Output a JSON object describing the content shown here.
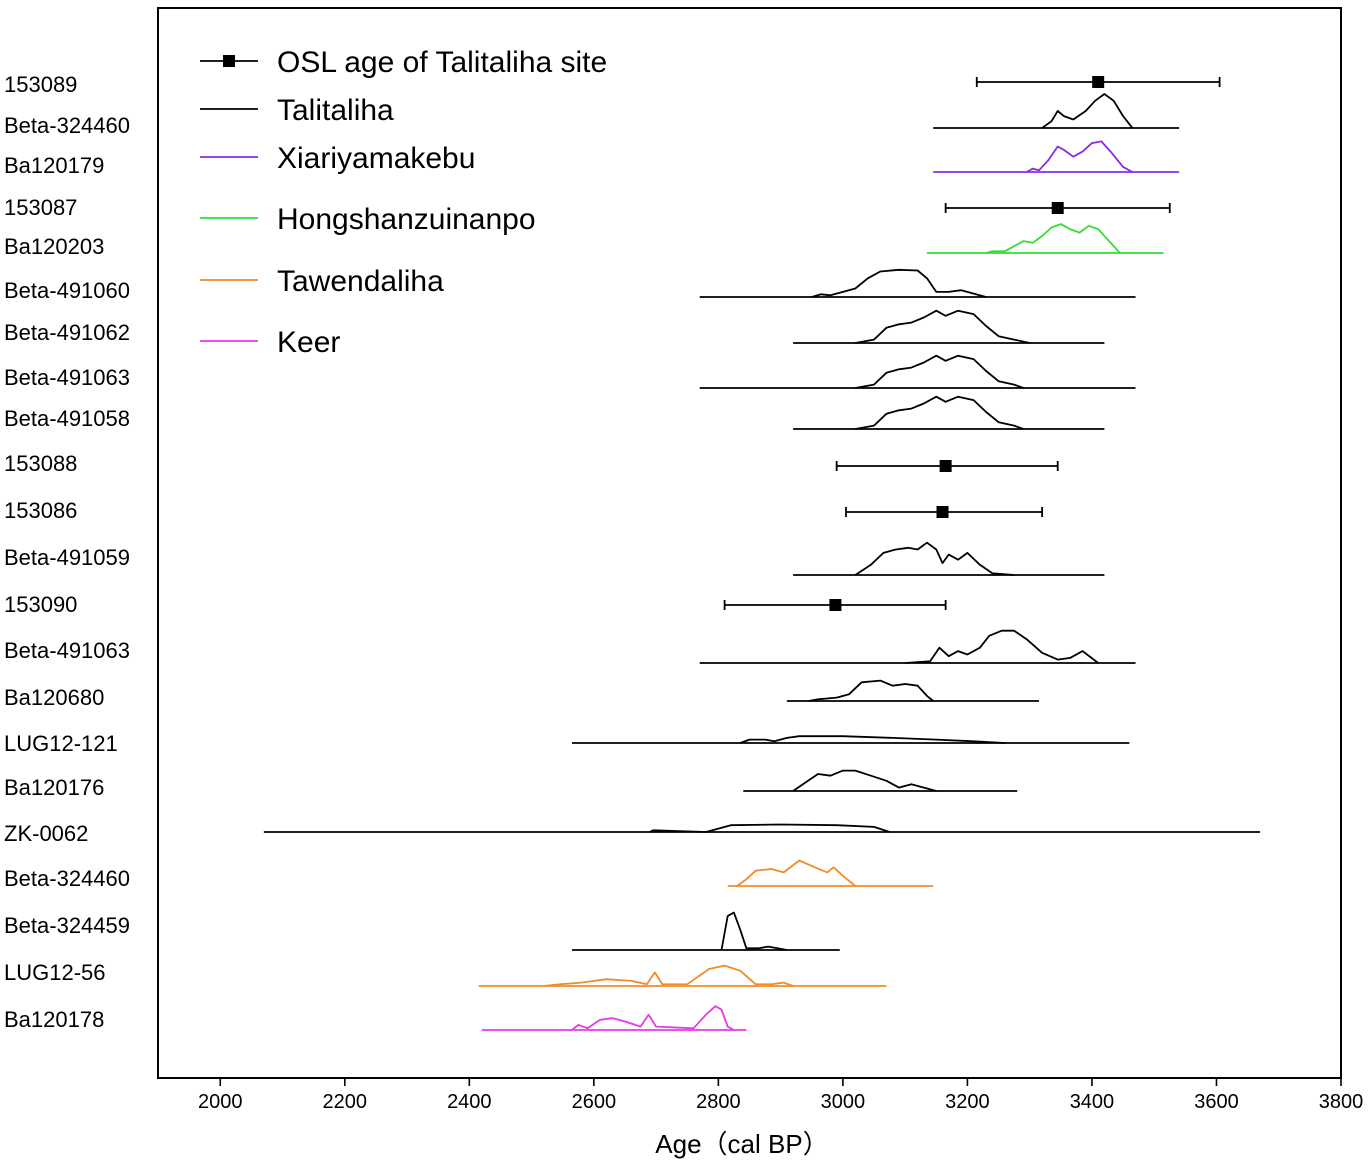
{
  "chart_data": {
    "type": "scatter",
    "title": "",
    "xlabel": "Age（cal BP）",
    "ylabel": "",
    "xlim": [
      1900,
      3800
    ],
    "xticks": [
      2000,
      2200,
      2400,
      2600,
      2800,
      3000,
      3200,
      3400,
      3600,
      3800
    ],
    "grid": false,
    "legend_position": "top-left",
    "legend": [
      {
        "label": "OSL age of Talitaliha site",
        "color": "#000000",
        "marker": "square"
      },
      {
        "label": "Talitaliha",
        "color": "#000000"
      },
      {
        "label": "Xiariyamakebu",
        "color": "#8a2be2"
      },
      {
        "label": "Hongshanzuinanpo",
        "color": "#33dd33"
      },
      {
        "label": "Tawendaliha",
        "color": "#f28c28"
      },
      {
        "label": "Keer",
        "color": "#e838e8"
      }
    ],
    "rows": [
      {
        "label": "153089",
        "kind": "osl",
        "age": 3410,
        "low": 3215,
        "high": 3605,
        "color": "#000000"
      },
      {
        "label": "Beta-324460",
        "kind": "cal",
        "color": "#000000",
        "range": [
          3145,
          3540
        ],
        "dist": [
          [
            3320,
            0
          ],
          [
            3335,
            0.2
          ],
          [
            3345,
            0.5
          ],
          [
            3355,
            0.35
          ],
          [
            3370,
            0.25
          ],
          [
            3390,
            0.5
          ],
          [
            3405,
            0.8
          ],
          [
            3420,
            1.0
          ],
          [
            3435,
            0.8
          ],
          [
            3450,
            0.35
          ],
          [
            3465,
            0
          ]
        ]
      },
      {
        "label": "Ba120179",
        "kind": "cal",
        "color": "#8a2be2",
        "range": [
          3145,
          3540
        ],
        "dist": [
          [
            3295,
            0
          ],
          [
            3305,
            0.1
          ],
          [
            3315,
            0.05
          ],
          [
            3330,
            0.35
          ],
          [
            3345,
            0.75
          ],
          [
            3355,
            0.65
          ],
          [
            3370,
            0.45
          ],
          [
            3385,
            0.6
          ],
          [
            3400,
            0.85
          ],
          [
            3415,
            0.9
          ],
          [
            3430,
            0.6
          ],
          [
            3450,
            0.15
          ],
          [
            3465,
            0
          ]
        ]
      },
      {
        "label": "153087",
        "kind": "osl",
        "age": 3345,
        "low": 3165,
        "high": 3525,
        "color": "#000000"
      },
      {
        "label": "Ba120203",
        "kind": "cal",
        "color": "#33dd33",
        "range": [
          3135,
          3515
        ],
        "dist": [
          [
            3230,
            0
          ],
          [
            3240,
            0.05
          ],
          [
            3260,
            0.05
          ],
          [
            3275,
            0.2
          ],
          [
            3290,
            0.35
          ],
          [
            3305,
            0.3
          ],
          [
            3320,
            0.5
          ],
          [
            3335,
            0.75
          ],
          [
            3350,
            0.85
          ],
          [
            3365,
            0.7
          ],
          [
            3380,
            0.6
          ],
          [
            3395,
            0.8
          ],
          [
            3410,
            0.7
          ],
          [
            3430,
            0.3
          ],
          [
            3445,
            0
          ]
        ]
      },
      {
        "label": "Beta-491060",
        "kind": "cal",
        "color": "#000000",
        "range": [
          2770,
          3470
        ],
        "dist": [
          [
            2950,
            0
          ],
          [
            2965,
            0.08
          ],
          [
            2980,
            0.05
          ],
          [
            3000,
            0.15
          ],
          [
            3020,
            0.25
          ],
          [
            3040,
            0.55
          ],
          [
            3060,
            0.75
          ],
          [
            3090,
            0.8
          ],
          [
            3120,
            0.78
          ],
          [
            3135,
            0.55
          ],
          [
            3150,
            0.15
          ],
          [
            3170,
            0.15
          ],
          [
            3190,
            0.2
          ],
          [
            3210,
            0.1
          ],
          [
            3230,
            0
          ]
        ]
      },
      {
        "label": "Beta-491062",
        "kind": "cal",
        "color": "#000000",
        "range": [
          2920,
          3420
        ],
        "dist": [
          [
            3020,
            0
          ],
          [
            3050,
            0.1
          ],
          [
            3070,
            0.45
          ],
          [
            3090,
            0.55
          ],
          [
            3110,
            0.6
          ],
          [
            3130,
            0.75
          ],
          [
            3150,
            0.95
          ],
          [
            3165,
            0.8
          ],
          [
            3185,
            0.95
          ],
          [
            3210,
            0.85
          ],
          [
            3230,
            0.5
          ],
          [
            3250,
            0.2
          ],
          [
            3275,
            0.1
          ],
          [
            3300,
            0
          ]
        ]
      },
      {
        "label": "Beta-491063",
        "kind": "cal",
        "color": "#000000",
        "range": [
          2770,
          3470
        ],
        "dist": [
          [
            3020,
            0
          ],
          [
            3050,
            0.1
          ],
          [
            3070,
            0.45
          ],
          [
            3090,
            0.55
          ],
          [
            3110,
            0.6
          ],
          [
            3130,
            0.75
          ],
          [
            3150,
            0.95
          ],
          [
            3165,
            0.8
          ],
          [
            3185,
            0.95
          ],
          [
            3210,
            0.85
          ],
          [
            3230,
            0.5
          ],
          [
            3250,
            0.2
          ],
          [
            3275,
            0.1
          ],
          [
            3290,
            0
          ]
        ]
      },
      {
        "label": "Beta-491058",
        "kind": "cal",
        "color": "#000000",
        "range": [
          2920,
          3420
        ],
        "dist": [
          [
            3020,
            0
          ],
          [
            3050,
            0.1
          ],
          [
            3070,
            0.45
          ],
          [
            3090,
            0.55
          ],
          [
            3110,
            0.6
          ],
          [
            3130,
            0.75
          ],
          [
            3150,
            0.95
          ],
          [
            3165,
            0.8
          ],
          [
            3185,
            0.95
          ],
          [
            3210,
            0.85
          ],
          [
            3230,
            0.5
          ],
          [
            3250,
            0.2
          ],
          [
            3275,
            0.1
          ],
          [
            3290,
            0
          ]
        ]
      },
      {
        "label": "153088",
        "kind": "osl",
        "age": 3165,
        "low": 2990,
        "high": 3345,
        "color": "#000000"
      },
      {
        "label": "153086",
        "kind": "osl",
        "age": 3160,
        "low": 3005,
        "high": 3320,
        "color": "#000000"
      },
      {
        "label": "Beta-491059",
        "kind": "cal",
        "color": "#000000",
        "range": [
          2920,
          3420
        ],
        "dist": [
          [
            3020,
            0
          ],
          [
            3045,
            0.3
          ],
          [
            3065,
            0.65
          ],
          [
            3085,
            0.75
          ],
          [
            3105,
            0.8
          ],
          [
            3120,
            0.75
          ],
          [
            3135,
            0.95
          ],
          [
            3150,
            0.75
          ],
          [
            3160,
            0.35
          ],
          [
            3170,
            0.6
          ],
          [
            3185,
            0.45
          ],
          [
            3200,
            0.65
          ],
          [
            3220,
            0.3
          ],
          [
            3240,
            0.05
          ],
          [
            3275,
            0
          ]
        ]
      },
      {
        "label": "153090",
        "kind": "osl",
        "age": 2988,
        "low": 2810,
        "high": 3165,
        "color": "#000000"
      },
      {
        "label": "Beta-491063",
        "kind": "cal",
        "color": "#000000",
        "range": [
          2770,
          3470
        ],
        "dist": [
          [
            3100,
            0
          ],
          [
            3140,
            0.05
          ],
          [
            3155,
            0.45
          ],
          [
            3170,
            0.2
          ],
          [
            3185,
            0.35
          ],
          [
            3200,
            0.25
          ],
          [
            3220,
            0.45
          ],
          [
            3235,
            0.8
          ],
          [
            3255,
            0.95
          ],
          [
            3275,
            0.95
          ],
          [
            3295,
            0.7
          ],
          [
            3320,
            0.3
          ],
          [
            3345,
            0.1
          ],
          [
            3365,
            0.15
          ],
          [
            3385,
            0.35
          ],
          [
            3410,
            0
          ]
        ]
      },
      {
        "label": "Ba120680",
        "kind": "cal",
        "color": "#000000",
        "range": [
          2910,
          3315
        ],
        "dist": [
          [
            2945,
            0
          ],
          [
            2960,
            0.05
          ],
          [
            2990,
            0.1
          ],
          [
            3010,
            0.2
          ],
          [
            3030,
            0.55
          ],
          [
            3060,
            0.6
          ],
          [
            3080,
            0.45
          ],
          [
            3100,
            0.5
          ],
          [
            3120,
            0.45
          ],
          [
            3135,
            0.15
          ],
          [
            3145,
            0
          ]
        ]
      },
      {
        "label": "LUG12-121",
        "kind": "cal",
        "color": "#000000",
        "range": [
          2565,
          3460
        ],
        "dist": [
          [
            2835,
            0
          ],
          [
            2850,
            0.1
          ],
          [
            2875,
            0.1
          ],
          [
            2890,
            0.05
          ],
          [
            2910,
            0.15
          ],
          [
            2930,
            0.2
          ],
          [
            3000,
            0.2
          ],
          [
            3080,
            0.15
          ],
          [
            3150,
            0.1
          ],
          [
            3210,
            0.05
          ],
          [
            3260,
            0
          ]
        ]
      },
      {
        "label": "Ba120176",
        "kind": "cal",
        "color": "#000000",
        "range": [
          2840,
          3280
        ],
        "dist": [
          [
            2920,
            0
          ],
          [
            2940,
            0.25
          ],
          [
            2960,
            0.5
          ],
          [
            2980,
            0.45
          ],
          [
            3000,
            0.6
          ],
          [
            3020,
            0.6
          ],
          [
            3045,
            0.45
          ],
          [
            3070,
            0.3
          ],
          [
            3090,
            0.1
          ],
          [
            3110,
            0.2
          ],
          [
            3130,
            0.1
          ],
          [
            3150,
            0
          ]
        ]
      },
      {
        "label": "ZK-0062",
        "kind": "cal",
        "color": "#000000",
        "range": [
          2070,
          3670
        ],
        "dist": [
          [
            2690,
            0
          ],
          [
            2695,
            0.05
          ],
          [
            2780,
            0
          ],
          [
            2800,
            0.1
          ],
          [
            2820,
            0.2
          ],
          [
            2900,
            0.22
          ],
          [
            2990,
            0.2
          ],
          [
            3050,
            0.15
          ],
          [
            3075,
            0
          ]
        ]
      },
      {
        "label": "Beta-324460",
        "kind": "cal",
        "color": "#f28c28",
        "range": [
          2815,
          3145
        ],
        "dist": [
          [
            2830,
            0
          ],
          [
            2845,
            0.2
          ],
          [
            2860,
            0.45
          ],
          [
            2885,
            0.5
          ],
          [
            2905,
            0.4
          ],
          [
            2930,
            0.75
          ],
          [
            2955,
            0.55
          ],
          [
            2975,
            0.4
          ],
          [
            2985,
            0.55
          ],
          [
            3000,
            0.3
          ],
          [
            3020,
            0
          ]
        ]
      },
      {
        "label": "Beta-324459",
        "kind": "cal",
        "color": "#000000",
        "range": [
          2565,
          2995
        ],
        "dist": [
          [
            2805,
            0
          ],
          [
            2815,
            1.0
          ],
          [
            2825,
            1.1
          ],
          [
            2835,
            0.6
          ],
          [
            2845,
            0.05
          ],
          [
            2865,
            0.05
          ],
          [
            2880,
            0.1
          ],
          [
            2895,
            0.05
          ],
          [
            2910,
            0
          ]
        ]
      },
      {
        "label": "LUG12-56",
        "kind": "cal",
        "color": "#f28c28",
        "range": [
          2415,
          3070
        ],
        "dist": [
          [
            2520,
            0
          ],
          [
            2545,
            0.05
          ],
          [
            2580,
            0.1
          ],
          [
            2620,
            0.2
          ],
          [
            2660,
            0.15
          ],
          [
            2685,
            0.05
          ],
          [
            2698,
            0.4
          ],
          [
            2710,
            0.05
          ],
          [
            2750,
            0.05
          ],
          [
            2785,
            0.5
          ],
          [
            2810,
            0.6
          ],
          [
            2835,
            0.45
          ],
          [
            2860,
            0.05
          ],
          [
            2885,
            0.05
          ],
          [
            2905,
            0.1
          ],
          [
            2920,
            0
          ]
        ]
      },
      {
        "label": "Ba120178",
        "kind": "cal",
        "color": "#e838e8",
        "range": [
          2420,
          2845
        ],
        "dist": [
          [
            2565,
            0
          ],
          [
            2575,
            0.15
          ],
          [
            2590,
            0.05
          ],
          [
            2610,
            0.3
          ],
          [
            2630,
            0.35
          ],
          [
            2650,
            0.25
          ],
          [
            2675,
            0.1
          ],
          [
            2688,
            0.45
          ],
          [
            2700,
            0.1
          ],
          [
            2760,
            0.05
          ],
          [
            2780,
            0.45
          ],
          [
            2795,
            0.7
          ],
          [
            2805,
            0.6
          ],
          [
            2815,
            0.1
          ],
          [
            2825,
            0
          ]
        ]
      }
    ]
  }
}
